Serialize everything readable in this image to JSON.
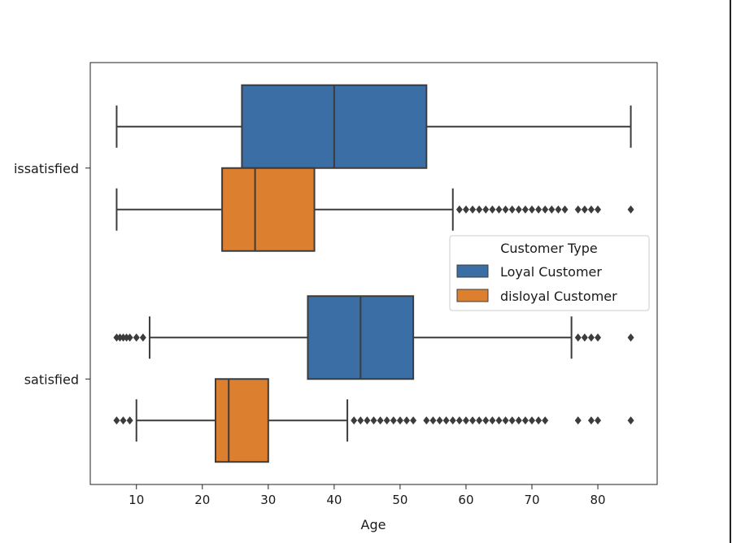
{
  "chart_data": {
    "type": "box",
    "orientation": "horizontal",
    "title": "",
    "xlabel": "Age",
    "ylabel": "",
    "xlim": [
      3,
      89
    ],
    "x_ticks": [
      10,
      20,
      30,
      40,
      50,
      60,
      70,
      80
    ],
    "categories": [
      "dissatisfied",
      "satisfied"
    ],
    "category_labels": [
      "issatisfied",
      "satisfied"
    ],
    "legend": {
      "title": "Customer Type",
      "placement": "center-right"
    },
    "grid": false,
    "series": [
      {
        "name": "Loyal Customer",
        "color": "#3a6ea5",
        "boxes": [
          {
            "category": "dissatisfied",
            "whisker_low": 7,
            "q1": 26,
            "median": 40,
            "q3": 54,
            "whisker_high": 85,
            "outliers": []
          },
          {
            "category": "satisfied",
            "whisker_low": 12,
            "q1": 36,
            "median": 44,
            "q3": 52,
            "whisker_high": 76,
            "outliers": [
              7,
              7.5,
              8,
              8.5,
              9,
              10,
              11,
              77,
              78,
              79,
              80,
              85
            ]
          }
        ]
      },
      {
        "name": "disloyal Customer",
        "color": "#dc7f2f",
        "boxes": [
          {
            "category": "dissatisfied",
            "whisker_low": 7,
            "q1": 23,
            "median": 28,
            "q3": 37,
            "whisker_high": 58,
            "outliers": [
              59,
              60,
              61,
              62,
              63,
              64,
              65,
              66,
              67,
              68,
              69,
              70,
              71,
              72,
              73,
              74,
              75,
              77,
              78,
              79,
              80,
              85
            ]
          },
          {
            "category": "satisfied",
            "whisker_low": 10,
            "q1": 22,
            "median": 24,
            "q3": 30,
            "whisker_high": 42,
            "outliers": [
              7,
              8,
              9,
              43,
              44,
              45,
              46,
              47,
              48,
              49,
              50,
              51,
              52,
              54,
              55,
              56,
              57,
              58,
              59,
              60,
              61,
              62,
              63,
              64,
              65,
              66,
              67,
              68,
              69,
              70,
              71,
              72,
              77,
              79,
              80,
              85
            ]
          }
        ]
      }
    ]
  }
}
